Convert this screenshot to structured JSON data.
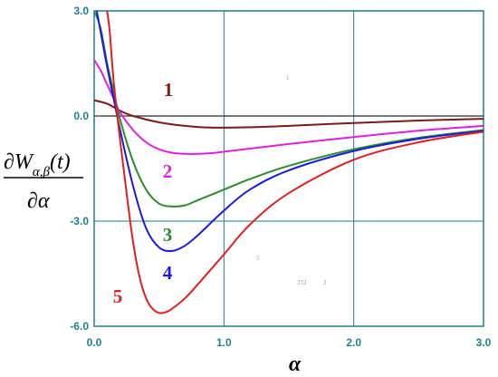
{
  "chart_data": {
    "type": "line",
    "xlabel": "α",
    "ylabel": {
      "numerator": "∂W",
      "subscript": "α,β",
      "argument": "(t)",
      "denominator": "∂α"
    },
    "xlim": [
      0.0,
      3.0
    ],
    "ylim": [
      -6.0,
      3.0
    ],
    "x_tick_labels": [
      "0.0",
      "1.0",
      "2.0",
      "3.0"
    ],
    "y_tick_labels": [
      "3.0",
      "0.0",
      "-3.0",
      "-6.0"
    ],
    "grid": true,
    "series": [
      {
        "label": "1",
        "color": "#7b1a1a",
        "x": [
          0.0,
          0.1,
          0.2,
          0.3,
          0.5,
          0.7,
          0.9,
          1.2,
          1.5,
          2.0,
          2.5,
          3.0
        ],
        "y": [
          0.45,
          0.35,
          0.15,
          0.0,
          -0.18,
          -0.28,
          -0.33,
          -0.32,
          -0.28,
          -0.2,
          -0.13,
          -0.08
        ]
      },
      {
        "label": "2",
        "color": "#e020e0",
        "x": [
          0.0,
          0.05,
          0.1,
          0.15,
          0.2,
          0.3,
          0.4,
          0.5,
          0.6,
          0.7,
          0.8,
          0.9,
          1.0,
          1.2,
          1.5,
          2.0,
          2.5,
          3.0
        ],
        "y": [
          1.6,
          1.3,
          0.9,
          0.5,
          0.1,
          -0.4,
          -0.75,
          -0.95,
          -1.05,
          -1.08,
          -1.08,
          -1.06,
          -1.02,
          -0.93,
          -0.8,
          -0.6,
          -0.42,
          -0.28
        ]
      },
      {
        "label": "3",
        "color": "#2e8b2e",
        "x": [
          0.0,
          0.05,
          0.1,
          0.15,
          0.2,
          0.3,
          0.4,
          0.5,
          0.6,
          0.7,
          0.8,
          1.0,
          1.2,
          1.5,
          2.0,
          2.5,
          3.0
        ],
        "y": [
          3.0,
          2.5,
          1.5,
          0.7,
          -0.1,
          -1.3,
          -2.1,
          -2.5,
          -2.58,
          -2.55,
          -2.4,
          -2.1,
          -1.8,
          -1.42,
          -0.95,
          -0.62,
          -0.4
        ]
      },
      {
        "label": "4",
        "color": "#1a1ae0",
        "x": [
          0.02,
          0.05,
          0.1,
          0.15,
          0.2,
          0.3,
          0.4,
          0.5,
          0.6,
          0.7,
          0.8,
          1.0,
          1.2,
          1.5,
          2.0,
          2.5,
          3.0
        ],
        "y": [
          3.0,
          2.4,
          1.4,
          0.5,
          -0.4,
          -2.0,
          -3.2,
          -3.75,
          -3.85,
          -3.7,
          -3.4,
          -2.7,
          -2.1,
          -1.55,
          -1.0,
          -0.65,
          -0.42
        ]
      },
      {
        "label": "5",
        "color": "#e02020",
        "x": [
          0.1,
          0.12,
          0.15,
          0.2,
          0.25,
          0.3,
          0.35,
          0.4,
          0.45,
          0.5,
          0.55,
          0.6,
          0.7,
          0.8,
          1.0,
          1.2,
          1.5,
          2.0,
          2.5,
          3.0
        ],
        "y": [
          3.0,
          2.4,
          1.0,
          -0.7,
          -2.2,
          -3.6,
          -4.6,
          -5.2,
          -5.5,
          -5.62,
          -5.6,
          -5.5,
          -5.2,
          -4.8,
          -3.95,
          -3.1,
          -2.2,
          -1.25,
          -0.75,
          -0.45
        ]
      }
    ],
    "annotations": [
      "1",
      "5",
      "232",
      "3"
    ]
  }
}
